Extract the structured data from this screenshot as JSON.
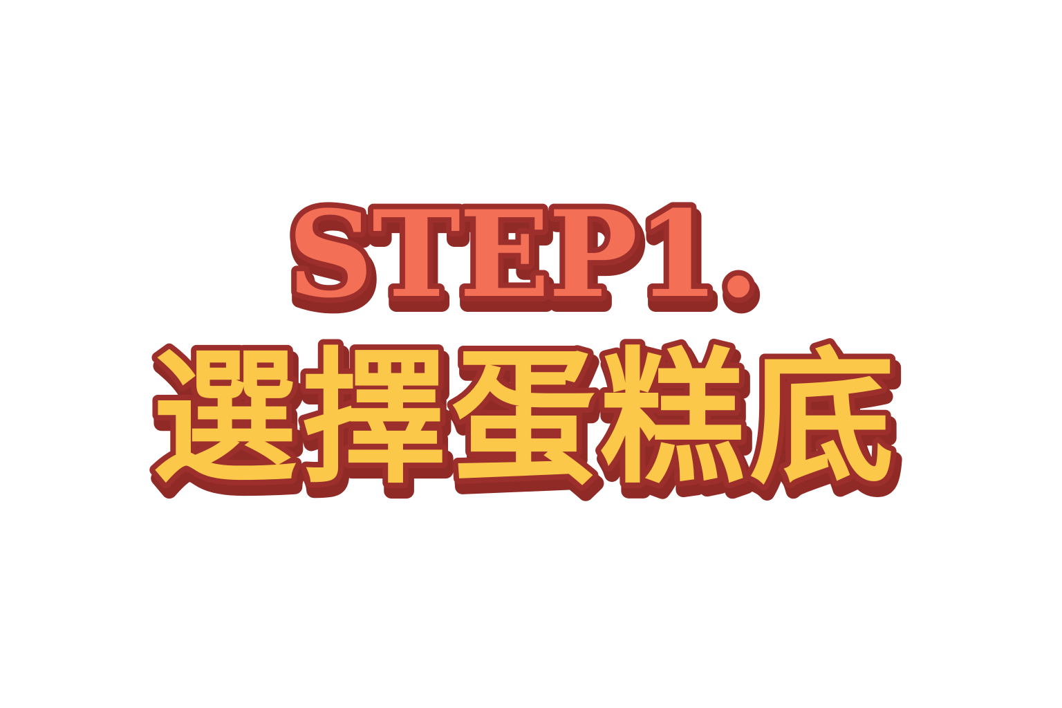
{
  "heading": {
    "step_label": "STEP1.",
    "title": "選擇蛋糕底"
  },
  "colors": {
    "background": "#ffffff",
    "step_fill": "#f36f55",
    "title_fill": "#fcc84a",
    "outline": "#9c2f2b",
    "shadow": "#8f2a26"
  }
}
